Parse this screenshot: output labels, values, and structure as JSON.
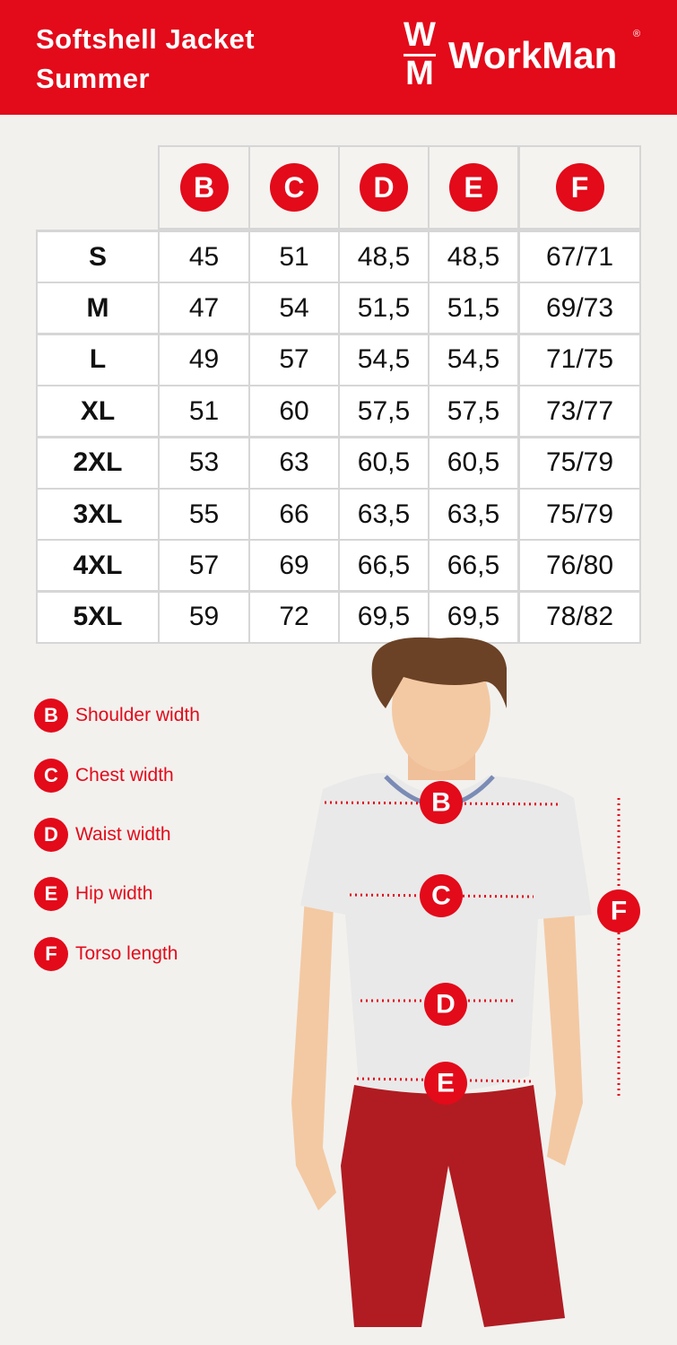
{
  "header": {
    "title_lines": [
      "Softshell Jacket",
      "Summer"
    ],
    "logo": {
      "letters": [
        "W",
        "M"
      ],
      "name": "WorkMan",
      "mark": "®"
    }
  },
  "table": {
    "columns": [
      "B",
      "C",
      "D",
      "E",
      "F"
    ],
    "rows": [
      [
        "S",
        "45",
        "51",
        "48,5",
        "48,5",
        "67/71"
      ],
      [
        "M",
        "47",
        "54",
        "51,5",
        "51,5",
        "69/73"
      ],
      [
        "L",
        "49",
        "57",
        "54,5",
        "54,5",
        "71/75"
      ],
      [
        "XL",
        "51",
        "60",
        "57,5",
        "57,5",
        "73/77"
      ],
      [
        "2XL",
        "53",
        "63",
        "60,5",
        "60,5",
        "75/79"
      ],
      [
        "3XL",
        "55",
        "66",
        "63,5",
        "63,5",
        "75/79"
      ],
      [
        "4XL",
        "57",
        "69",
        "66,5",
        "66,5",
        "76/80"
      ],
      [
        "5XL",
        "59",
        "72",
        "69,5",
        "69,5",
        "78/82"
      ]
    ]
  },
  "legend": [
    {
      "letter": "B",
      "label": "Shoulder width"
    },
    {
      "letter": "C",
      "label": "Chest width"
    },
    {
      "letter": "D",
      "label": "Waist width"
    },
    {
      "letter": "E",
      "label": "Hip width"
    },
    {
      "letter": "F",
      "label": "Torso length"
    }
  ]
}
